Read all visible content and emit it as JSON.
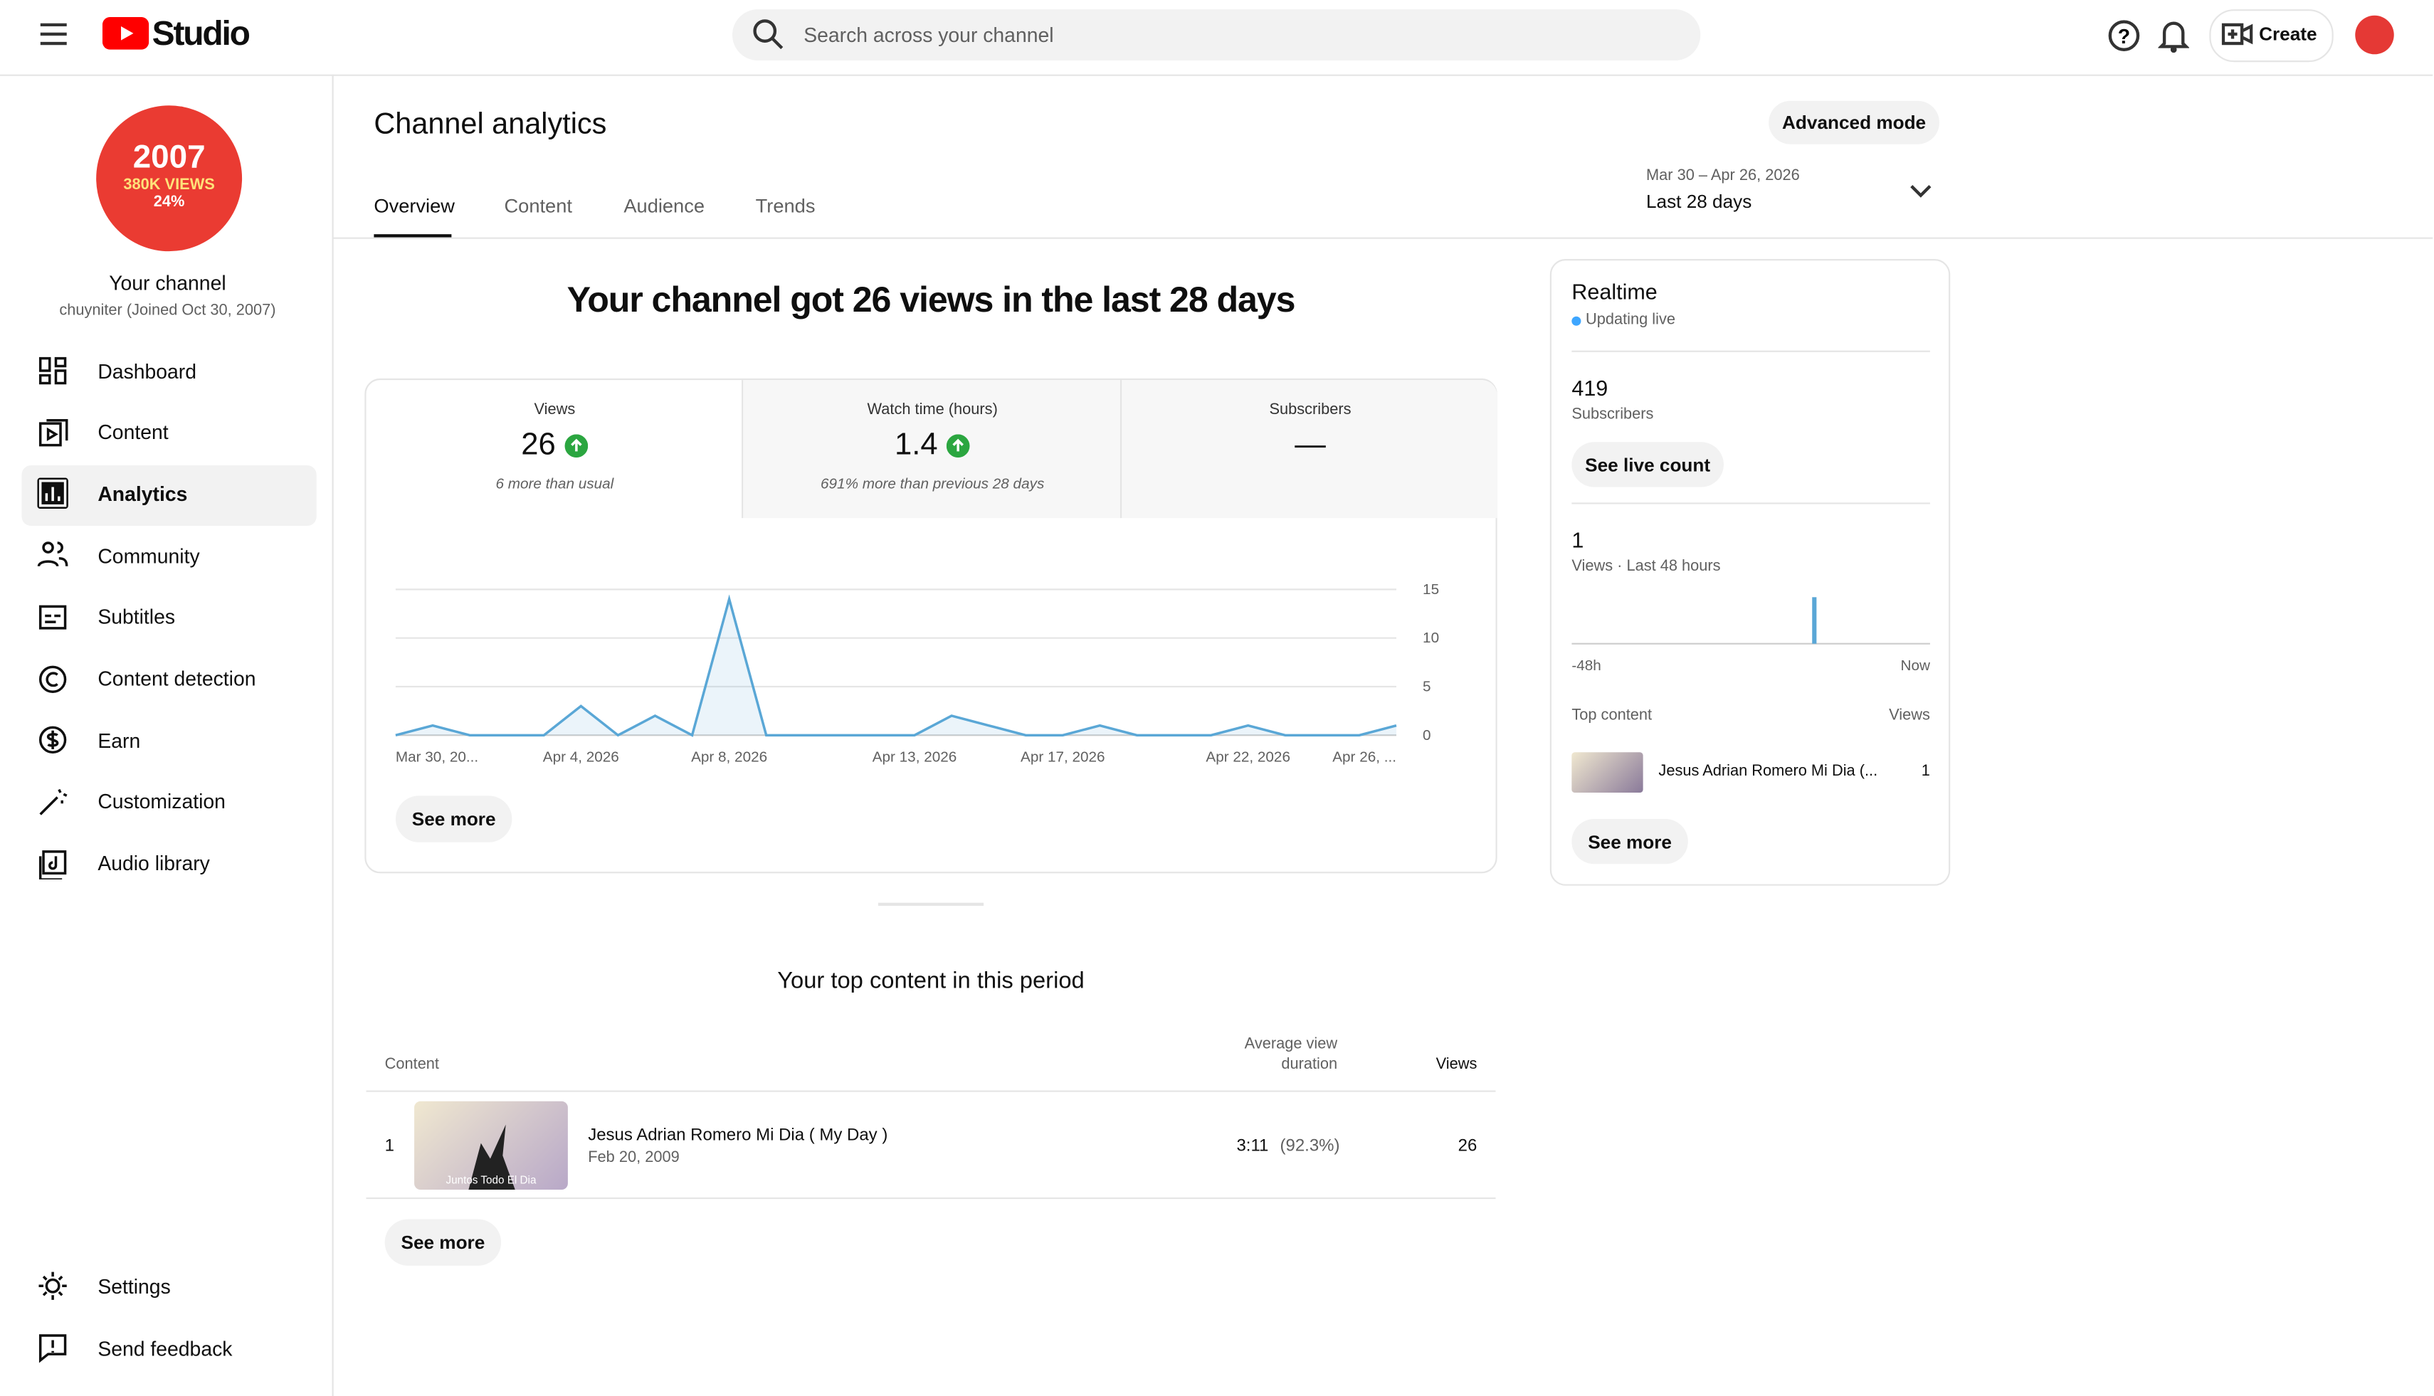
{
  "header": {
    "logo_text": "Studio",
    "search_placeholder": "Search across your channel",
    "create": "Create"
  },
  "sidebar": {
    "avatar": {
      "line1": "2007",
      "line2": "380K VIEWS",
      "line3": "24%"
    },
    "channel_title": "Your channel",
    "channel_sub": "chuyniter (Joined Oct 30, 2007)",
    "nav": [
      "Dashboard",
      "Content",
      "Analytics",
      "Community",
      "Subtitles",
      "Content detection",
      "Earn",
      "Customization",
      "Audio library"
    ],
    "bottom_nav": [
      "Settings",
      "Send feedback"
    ]
  },
  "page": {
    "title": "Channel analytics",
    "advanced": "Advanced mode",
    "tabs": [
      "Overview",
      "Content",
      "Audience",
      "Trends"
    ],
    "date_range": "Mar 30 – Apr 26, 2026",
    "period": "Last 28 days",
    "headline": "Your channel got 26 views in the last 28 days"
  },
  "metrics": [
    {
      "label": "Views",
      "value": 26,
      "note": "6 more than usual"
    },
    {
      "label": "Watch time (hours)",
      "value": 1.4,
      "note": "691% more than previous 28 days"
    },
    {
      "label": "Subscribers",
      "value": "—"
    }
  ],
  "see_more": "See more",
  "chart_data": [
    {
      "type": "area",
      "color": "#5aa7d6",
      "categories": [
        "Mar 30, 20...",
        null,
        null,
        null,
        null,
        "Apr 4, 2026",
        null,
        null,
        null,
        "Apr 8, 2026",
        null,
        null,
        null,
        null,
        "Apr 13, 2026",
        null,
        null,
        null,
        "Apr 17, 2026",
        null,
        null,
        null,
        null,
        "Apr 22, 2026",
        null,
        null,
        null,
        "Apr 26, ..."
      ],
      "values": [
        0,
        1,
        0,
        0,
        0,
        3,
        0,
        2,
        0,
        14,
        0,
        0,
        0,
        0,
        0,
        2,
        1,
        0,
        0,
        1,
        0,
        0,
        0,
        1,
        0,
        0,
        0,
        1
      ],
      "ylim": [
        0,
        15
      ],
      "yticks": [
        0,
        5,
        10,
        15
      ],
      "grid": true
    },
    {
      "type": "bar",
      "color": "#5aa7d6",
      "categories": [
        "-48h",
        null,
        null,
        null,
        null,
        null,
        null,
        null,
        null,
        null,
        null,
        null,
        null,
        null,
        null,
        null,
        null,
        null,
        null,
        null,
        null,
        null,
        null,
        null,
        null,
        null,
        null,
        null,
        null,
        null,
        null,
        null,
        null,
        null,
        null,
        null,
        null,
        null,
        null,
        null,
        null,
        null,
        null,
        null,
        null,
        null,
        null,
        "Now"
      ],
      "values": [
        0,
        0,
        0,
        0,
        0,
        0,
        0,
        0,
        0,
        0,
        0,
        0,
        0,
        0,
        0,
        0,
        0,
        0,
        0,
        0,
        0,
        0,
        0,
        0,
        0,
        0,
        0,
        0,
        0,
        0,
        0,
        0,
        1,
        0,
        0,
        0,
        0,
        0,
        0,
        0,
        0,
        0,
        0,
        0,
        0,
        0,
        0,
        0
      ],
      "ylim": [
        0,
        1
      ]
    }
  ],
  "realtime": {
    "title": "Realtime",
    "status": "Updating live",
    "subscribers": 419,
    "subscribers_label": "Subscribers",
    "live_count_button": "See live count",
    "views": 1,
    "views_label": "Views · Last 48 hours",
    "top_content_label": "Top content",
    "views_header": "Views",
    "item_title": "Jesus Adrian Romero Mi Dia (...",
    "item_views": 1
  },
  "top_content": {
    "title": "Your top content in this period",
    "columns": [
      "Content",
      "Average view",
      "duration",
      "Views"
    ],
    "rows": [
      {
        "rank": 1,
        "thumb_text": "Juntos Todo El Dia",
        "title": "Jesus Adrian Romero Mi Dia ( My Day )",
        "date": "Feb 20, 2009",
        "avg": "3:11",
        "pct": "(92.3%)",
        "views": 26
      }
    ]
  }
}
